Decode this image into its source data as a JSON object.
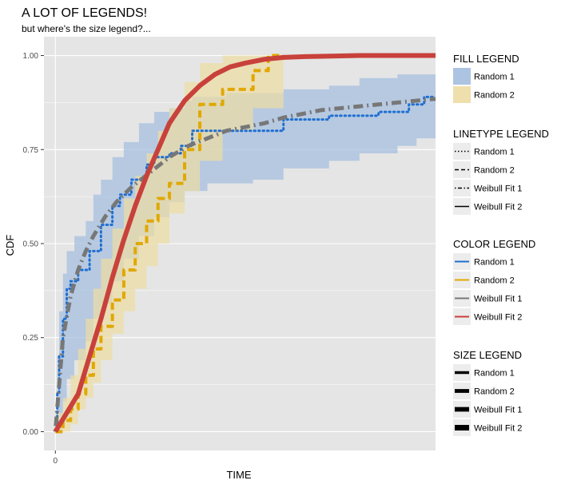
{
  "chart_data": {
    "type": "line",
    "title": "A LOT OF LEGENDS!",
    "subtitle": "but where's the size legend?...",
    "xlabel": "TIME",
    "ylabel": "CDF",
    "x_ticks": [
      "0"
    ],
    "y_ticks": [
      "0.00",
      "0.25",
      "0.50",
      "0.75",
      "1.00"
    ],
    "ylim": [
      -0.05,
      1.05
    ],
    "xlim": [
      -0.03,
      1.0
    ],
    "grid": true,
    "legend_position": "right",
    "colors": {
      "panel": "#e5e5e5",
      "grid": "#ffffff",
      "random1": "#1f6fd1",
      "random2": "#e0a800",
      "fill_random1": "#a3bedf",
      "fill_random2": "#eddca3",
      "weibull1": "#777777",
      "weibull2": "#c8413b"
    },
    "series": [
      {
        "name": "Random 1",
        "kind": "step",
        "linetype": "dotted",
        "color": "#1f6fd1",
        "x": [
          0.0,
          0.005,
          0.01,
          0.02,
          0.03,
          0.04,
          0.06,
          0.09,
          0.12,
          0.15,
          0.17,
          0.2,
          0.24,
          0.26,
          0.3,
          0.33,
          0.36,
          0.42,
          0.6,
          0.72,
          0.85,
          0.93,
          0.97,
          1.0
        ],
        "y": [
          0.02,
          0.1,
          0.2,
          0.3,
          0.38,
          0.4,
          0.43,
          0.48,
          0.55,
          0.6,
          0.63,
          0.67,
          0.71,
          0.73,
          0.74,
          0.76,
          0.8,
          0.8,
          0.83,
          0.84,
          0.85,
          0.87,
          0.89,
          0.89
        ]
      },
      {
        "name": "Random 2",
        "kind": "step",
        "linetype": "dashed",
        "color": "#e0a800",
        "x": [
          0.0,
          0.02,
          0.04,
          0.06,
          0.08,
          0.1,
          0.12,
          0.15,
          0.18,
          0.21,
          0.24,
          0.27,
          0.3,
          0.34,
          0.38,
          0.44,
          0.52,
          0.56,
          0.6
        ],
        "y": [
          0.0,
          0.03,
          0.06,
          0.1,
          0.15,
          0.22,
          0.28,
          0.35,
          0.43,
          0.5,
          0.56,
          0.62,
          0.66,
          0.75,
          0.87,
          0.91,
          0.96,
          1.0,
          1.0
        ]
      },
      {
        "name": "Weibull Fit 1",
        "kind": "smooth",
        "linetype": "dotdash",
        "color": "#777777",
        "x": [
          0.0,
          0.02,
          0.04,
          0.06,
          0.08,
          0.1,
          0.13,
          0.16,
          0.2,
          0.25,
          0.3,
          0.35,
          0.4,
          0.45,
          0.5,
          0.55,
          0.6,
          0.65,
          0.7,
          0.75,
          0.8,
          0.85,
          0.9,
          0.95,
          1.0
        ],
        "y": [
          0.0,
          0.25,
          0.36,
          0.43,
          0.48,
          0.52,
          0.57,
          0.61,
          0.65,
          0.69,
          0.73,
          0.76,
          0.78,
          0.8,
          0.81,
          0.82,
          0.835,
          0.845,
          0.855,
          0.86,
          0.865,
          0.87,
          0.875,
          0.88,
          0.885
        ]
      },
      {
        "name": "Weibull Fit 2",
        "kind": "smooth",
        "linetype": "solid",
        "color": "#c8413b",
        "x": [
          0.0,
          0.03,
          0.06,
          0.09,
          0.12,
          0.15,
          0.18,
          0.21,
          0.24,
          0.27,
          0.3,
          0.34,
          0.38,
          0.42,
          0.46,
          0.5,
          0.55,
          0.6,
          0.65,
          0.7,
          0.75,
          0.8,
          0.85,
          0.9,
          0.95,
          1.0
        ],
        "y": [
          0.0,
          0.05,
          0.1,
          0.2,
          0.3,
          0.41,
          0.51,
          0.6,
          0.68,
          0.75,
          0.82,
          0.88,
          0.92,
          0.95,
          0.97,
          0.98,
          0.99,
          0.995,
          0.997,
          0.998,
          0.999,
          1.0,
          1.0,
          1.0,
          1.0,
          1.0
        ]
      }
    ],
    "ribbons": [
      {
        "name": "Random 1",
        "color": "#a3bedf",
        "x": [
          0.0,
          0.005,
          0.01,
          0.02,
          0.03,
          0.05,
          0.08,
          0.1,
          0.12,
          0.15,
          0.18,
          0.22,
          0.26,
          0.3,
          0.34,
          0.36,
          0.4,
          0.45,
          0.52,
          0.6,
          0.72,
          0.8,
          0.9,
          0.95,
          1.0
        ],
        "lower": [
          0.0,
          0.0,
          0.01,
          0.04,
          0.08,
          0.14,
          0.19,
          0.24,
          0.3,
          0.34,
          0.4,
          0.46,
          0.52,
          0.57,
          0.61,
          0.64,
          0.64,
          0.66,
          0.66,
          0.67,
          0.7,
          0.72,
          0.74,
          0.76,
          0.78
        ],
        "upper": [
          0.05,
          0.2,
          0.32,
          0.42,
          0.48,
          0.52,
          0.56,
          0.63,
          0.67,
          0.73,
          0.77,
          0.82,
          0.85,
          0.86,
          0.88,
          0.89,
          0.89,
          0.9,
          0.9,
          0.91,
          0.92,
          0.94,
          0.95,
          0.95,
          0.95
        ]
      },
      {
        "name": "Random 2",
        "color": "#eddca3",
        "x": [
          0.0,
          0.02,
          0.04,
          0.06,
          0.08,
          0.1,
          0.12,
          0.15,
          0.18,
          0.21,
          0.24,
          0.27,
          0.3,
          0.34,
          0.38,
          0.44,
          0.52,
          0.56,
          0.6
        ],
        "lower": [
          0.0,
          0.0,
          0.0,
          0.02,
          0.06,
          0.09,
          0.13,
          0.19,
          0.26,
          0.32,
          0.38,
          0.44,
          0.5,
          0.58,
          0.64,
          0.72,
          0.8,
          0.86,
          0.86
        ],
        "upper": [
          0.05,
          0.09,
          0.15,
          0.22,
          0.3,
          0.38,
          0.46,
          0.54,
          0.62,
          0.68,
          0.74,
          0.8,
          0.86,
          0.93,
          0.98,
          1.0,
          1.0,
          1.0,
          1.0
        ]
      }
    ]
  },
  "legends": [
    {
      "title": "FILL LEGEND",
      "kind": "fill",
      "items": [
        {
          "label": "Random 1",
          "color": "#a3bedf"
        },
        {
          "label": "Random 2",
          "color": "#eddca3"
        }
      ]
    },
    {
      "title": "LINETYPE LEGEND",
      "kind": "linetype",
      "items": [
        {
          "label": "Random 1",
          "linetype": "dotted"
        },
        {
          "label": "Random 2",
          "linetype": "dashed"
        },
        {
          "label": "Weibull Fit 1",
          "linetype": "dotdash"
        },
        {
          "label": "Weibull Fit 2",
          "linetype": "solid"
        }
      ]
    },
    {
      "title": "COLOR LEGEND",
      "kind": "color",
      "items": [
        {
          "label": "Random 1",
          "color": "#1f6fd1"
        },
        {
          "label": "Random 2",
          "color": "#e0a800"
        },
        {
          "label": "Weibull Fit 1",
          "color": "#777777"
        },
        {
          "label": "Weibull Fit 2",
          "color": "#c8413b"
        }
      ]
    },
    {
      "title": "SIZE LEGEND",
      "kind": "size",
      "items": [
        {
          "label": "Random 1",
          "size": 1
        },
        {
          "label": "Random 2",
          "size": 2
        },
        {
          "label": "Weibull Fit 1",
          "size": 3
        },
        {
          "label": "Weibull Fit 2",
          "size": 4
        }
      ]
    }
  ]
}
